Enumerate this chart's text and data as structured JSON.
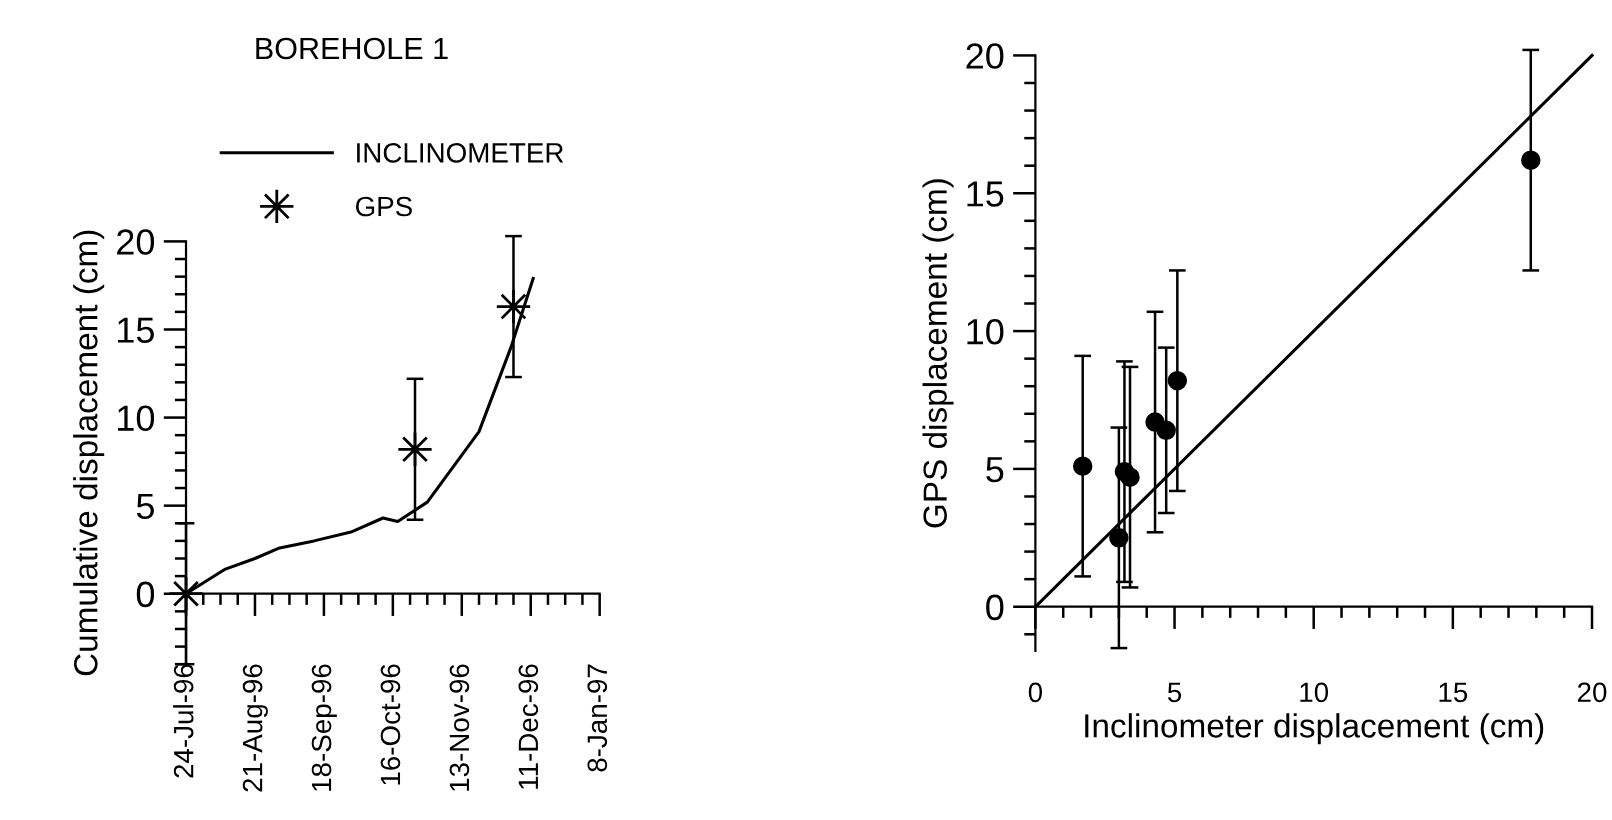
{
  "chart_data": [
    {
      "type": "line",
      "title": "BOREHOLE 1",
      "ylabel": "Cumulative displacement (cm)",
      "series": [
        {
          "name": "INCLINOMETER",
          "color": "#000000",
          "marker": "none",
          "x": [
            "1996-07-24",
            "1996-08-09",
            "1996-08-21",
            "1996-08-31",
            "1996-09-14",
            "1996-09-29",
            "1996-10-12",
            "1996-10-18",
            "1996-10-30",
            "1996-11-20",
            "1996-12-03",
            "1996-12-12"
          ],
          "values": [
            0,
            1.4,
            2.0,
            2.6,
            3.0,
            3.5,
            4.3,
            4.1,
            5.2,
            9.2,
            14.0,
            17.9
          ]
        },
        {
          "name": "GPS",
          "color": "#000000",
          "type": "scatter",
          "marker": "star",
          "x": [
            "1996-07-24",
            "1996-10-25",
            "1996-12-04"
          ],
          "values": [
            0,
            8.2,
            16.3
          ],
          "errors": [
            4,
            4,
            4
          ]
        }
      ],
      "xlim": [
        "1996-07-24",
        "1997-01-08"
      ],
      "ylim": [
        -4,
        20
      ],
      "xticks": [
        {
          "value": "1996-07-24",
          "label": "24-Jul-96"
        },
        {
          "value": "1996-08-21",
          "label": "21-Aug-96"
        },
        {
          "value": "1996-09-18",
          "label": "18-Sep-96"
        },
        {
          "value": "1996-10-16",
          "label": "16-Oct-96"
        },
        {
          "value": "1996-11-13",
          "label": "13-Nov-96"
        },
        {
          "value": "1996-12-11",
          "label": "11-Dec-96"
        },
        {
          "value": "1997-01-08",
          "label": "8-Jan-97"
        }
      ],
      "yticks": [
        0,
        5,
        10,
        15,
        20
      ],
      "legend": "top"
    },
    {
      "type": "scatter",
      "xlabel": "Inclinometer displacement (cm)",
      "ylabel": "GPS displacement (cm)",
      "series": [
        {
          "color": "#000000",
          "marker": "circle",
          "x": [
            1.7,
            3.0,
            3.2,
            3.4,
            4.3,
            4.7,
            5.1,
            17.8
          ],
          "values": [
            5.1,
            2.5,
            4.9,
            4.7,
            6.7,
            6.4,
            8.2,
            16.2
          ],
          "errors": [
            4,
            4,
            4,
            4,
            4,
            3,
            4,
            4
          ]
        },
        {
          "color": "#000000",
          "type": "line",
          "marker": "none",
          "x": [
            0,
            20
          ],
          "values": [
            0,
            20
          ]
        }
      ],
      "xlim": [
        0,
        20
      ],
      "ylim": [
        -1.6,
        20
      ],
      "xticks": [
        0,
        5,
        10,
        15,
        20
      ],
      "yticks": [
        0,
        5,
        10,
        15,
        20
      ],
      "legend": false
    }
  ]
}
